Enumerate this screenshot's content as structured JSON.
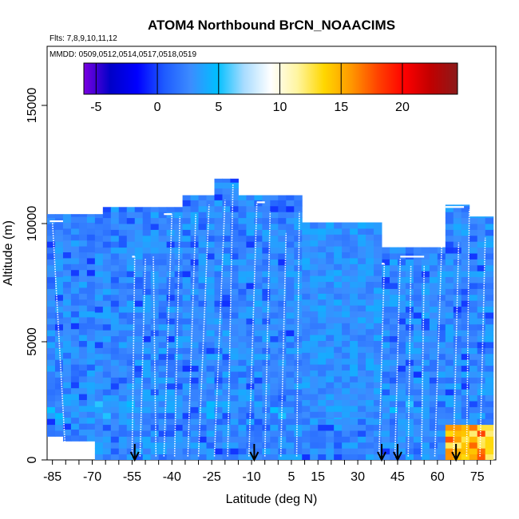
{
  "chart_data": {
    "type": "heatmap",
    "title": "ATOM4 Northbound BrCN_NOAACIMS",
    "subtitle_flights": "Flts: 7,8,9,10,11,12",
    "subtitle_dates": "MMDD: 0509,0512,0514,0517,0518,0519",
    "xlabel": "Latitude (deg N)",
    "ylabel": "Altitude (m)",
    "xlim": [
      -87,
      82
    ],
    "ylim": [
      0,
      17500
    ],
    "x_ticks": [
      -85,
      -70,
      -55,
      -40,
      -25,
      -10,
      5,
      15,
      30,
      45,
      60,
      75
    ],
    "x_tick_labels": [
      "-85",
      "-70",
      "-55",
      "-40",
      "-25",
      "-10",
      "5",
      "15",
      "30",
      "45",
      "60",
      "75"
    ],
    "y_ticks": [
      0,
      5000,
      10000,
      15000
    ],
    "y_tick_labels": [
      "0",
      "5000",
      "10000",
      "15000"
    ],
    "colorbar": {
      "min": -6,
      "max": 24.5,
      "ticks": [
        -5,
        0,
        5,
        10,
        15,
        20
      ],
      "tick_labels": [
        "-5",
        "0",
        "5",
        "10",
        "15",
        "20"
      ],
      "colors": [
        "#7a00e0",
        "#0000c8",
        "#0000ff",
        "#1e5aff",
        "#3c8cff",
        "#00bfff",
        "#a8dcff",
        "#ffffff",
        "#fff5a0",
        "#ffd700",
        "#ff9900",
        "#ff4400",
        "#ff0000",
        "#c00000",
        "#8b1a1a"
      ]
    },
    "arrows_latitude": [
      -54,
      -9,
      39,
      45,
      67
    ],
    "vertical_profiles": [
      {
        "lat_bottom": -80,
        "lat_top": -85,
        "top_alt": 10100
      },
      {
        "lat_bottom": -55,
        "lat_top": -54,
        "top_alt": 8600
      },
      {
        "lat_bottom": -52,
        "lat_top": -50,
        "top_alt": 8500
      },
      {
        "lat_bottom": -46,
        "lat_top": -47,
        "top_alt": 8600
      },
      {
        "lat_bottom": -43,
        "lat_top": -40,
        "top_alt": 10400
      },
      {
        "lat_bottom": -39,
        "lat_top": -37,
        "top_alt": 10300
      },
      {
        "lat_bottom": -34,
        "lat_top": -31,
        "top_alt": 10400
      },
      {
        "lat_bottom": -30,
        "lat_top": -26,
        "top_alt": 10800
      },
      {
        "lat_bottom": -24,
        "lat_top": -20,
        "top_alt": 11000
      },
      {
        "lat_bottom": -19,
        "lat_top": -17,
        "top_alt": 11700
      },
      {
        "lat_bottom": -11,
        "lat_top": -8,
        "top_alt": 10900
      },
      {
        "lat_bottom": -5,
        "lat_top": -3,
        "top_alt": 10500
      },
      {
        "lat_bottom": 1,
        "lat_top": 3,
        "top_alt": 9600
      },
      {
        "lat_bottom": 7,
        "lat_top": 8,
        "top_alt": 10500
      },
      {
        "lat_bottom": 38,
        "lat_top": 40,
        "top_alt": 8300
      },
      {
        "lat_bottom": 44,
        "lat_top": 46,
        "top_alt": 8500
      },
      {
        "lat_bottom": 49,
        "lat_top": 50,
        "top_alt": 8200
      },
      {
        "lat_bottom": 54,
        "lat_top": 55,
        "top_alt": 8200
      },
      {
        "lat_bottom": 59,
        "lat_top": 62,
        "top_alt": 10400
      },
      {
        "lat_bottom": 66,
        "lat_top": 68,
        "top_alt": 9200
      },
      {
        "lat_bottom": 71,
        "lat_top": 72,
        "top_alt": 10600
      },
      {
        "lat_bottom": 76,
        "lat_top": 78,
        "top_alt": 9400
      }
    ],
    "level_transects": [
      {
        "lat_start": -86,
        "lat_end": -81,
        "alt": 10100
      },
      {
        "lat_start": -55,
        "lat_end": -54,
        "alt": 8600
      },
      {
        "lat_start": -43,
        "lat_end": -40,
        "alt": 10400
      },
      {
        "lat_start": -8,
        "lat_end": -5,
        "alt": 10900
      },
      {
        "lat_start": 39,
        "lat_end": 40,
        "alt": 8300
      },
      {
        "lat_start": 46,
        "lat_end": 55,
        "alt": 8600
      },
      {
        "lat_start": 63,
        "lat_end": 70,
        "alt": 10700
      }
    ],
    "notes": "Background field mostly 0–5 ppt (blue); higher values (12–18, yellow/orange) near surface at 62–80 N"
  }
}
